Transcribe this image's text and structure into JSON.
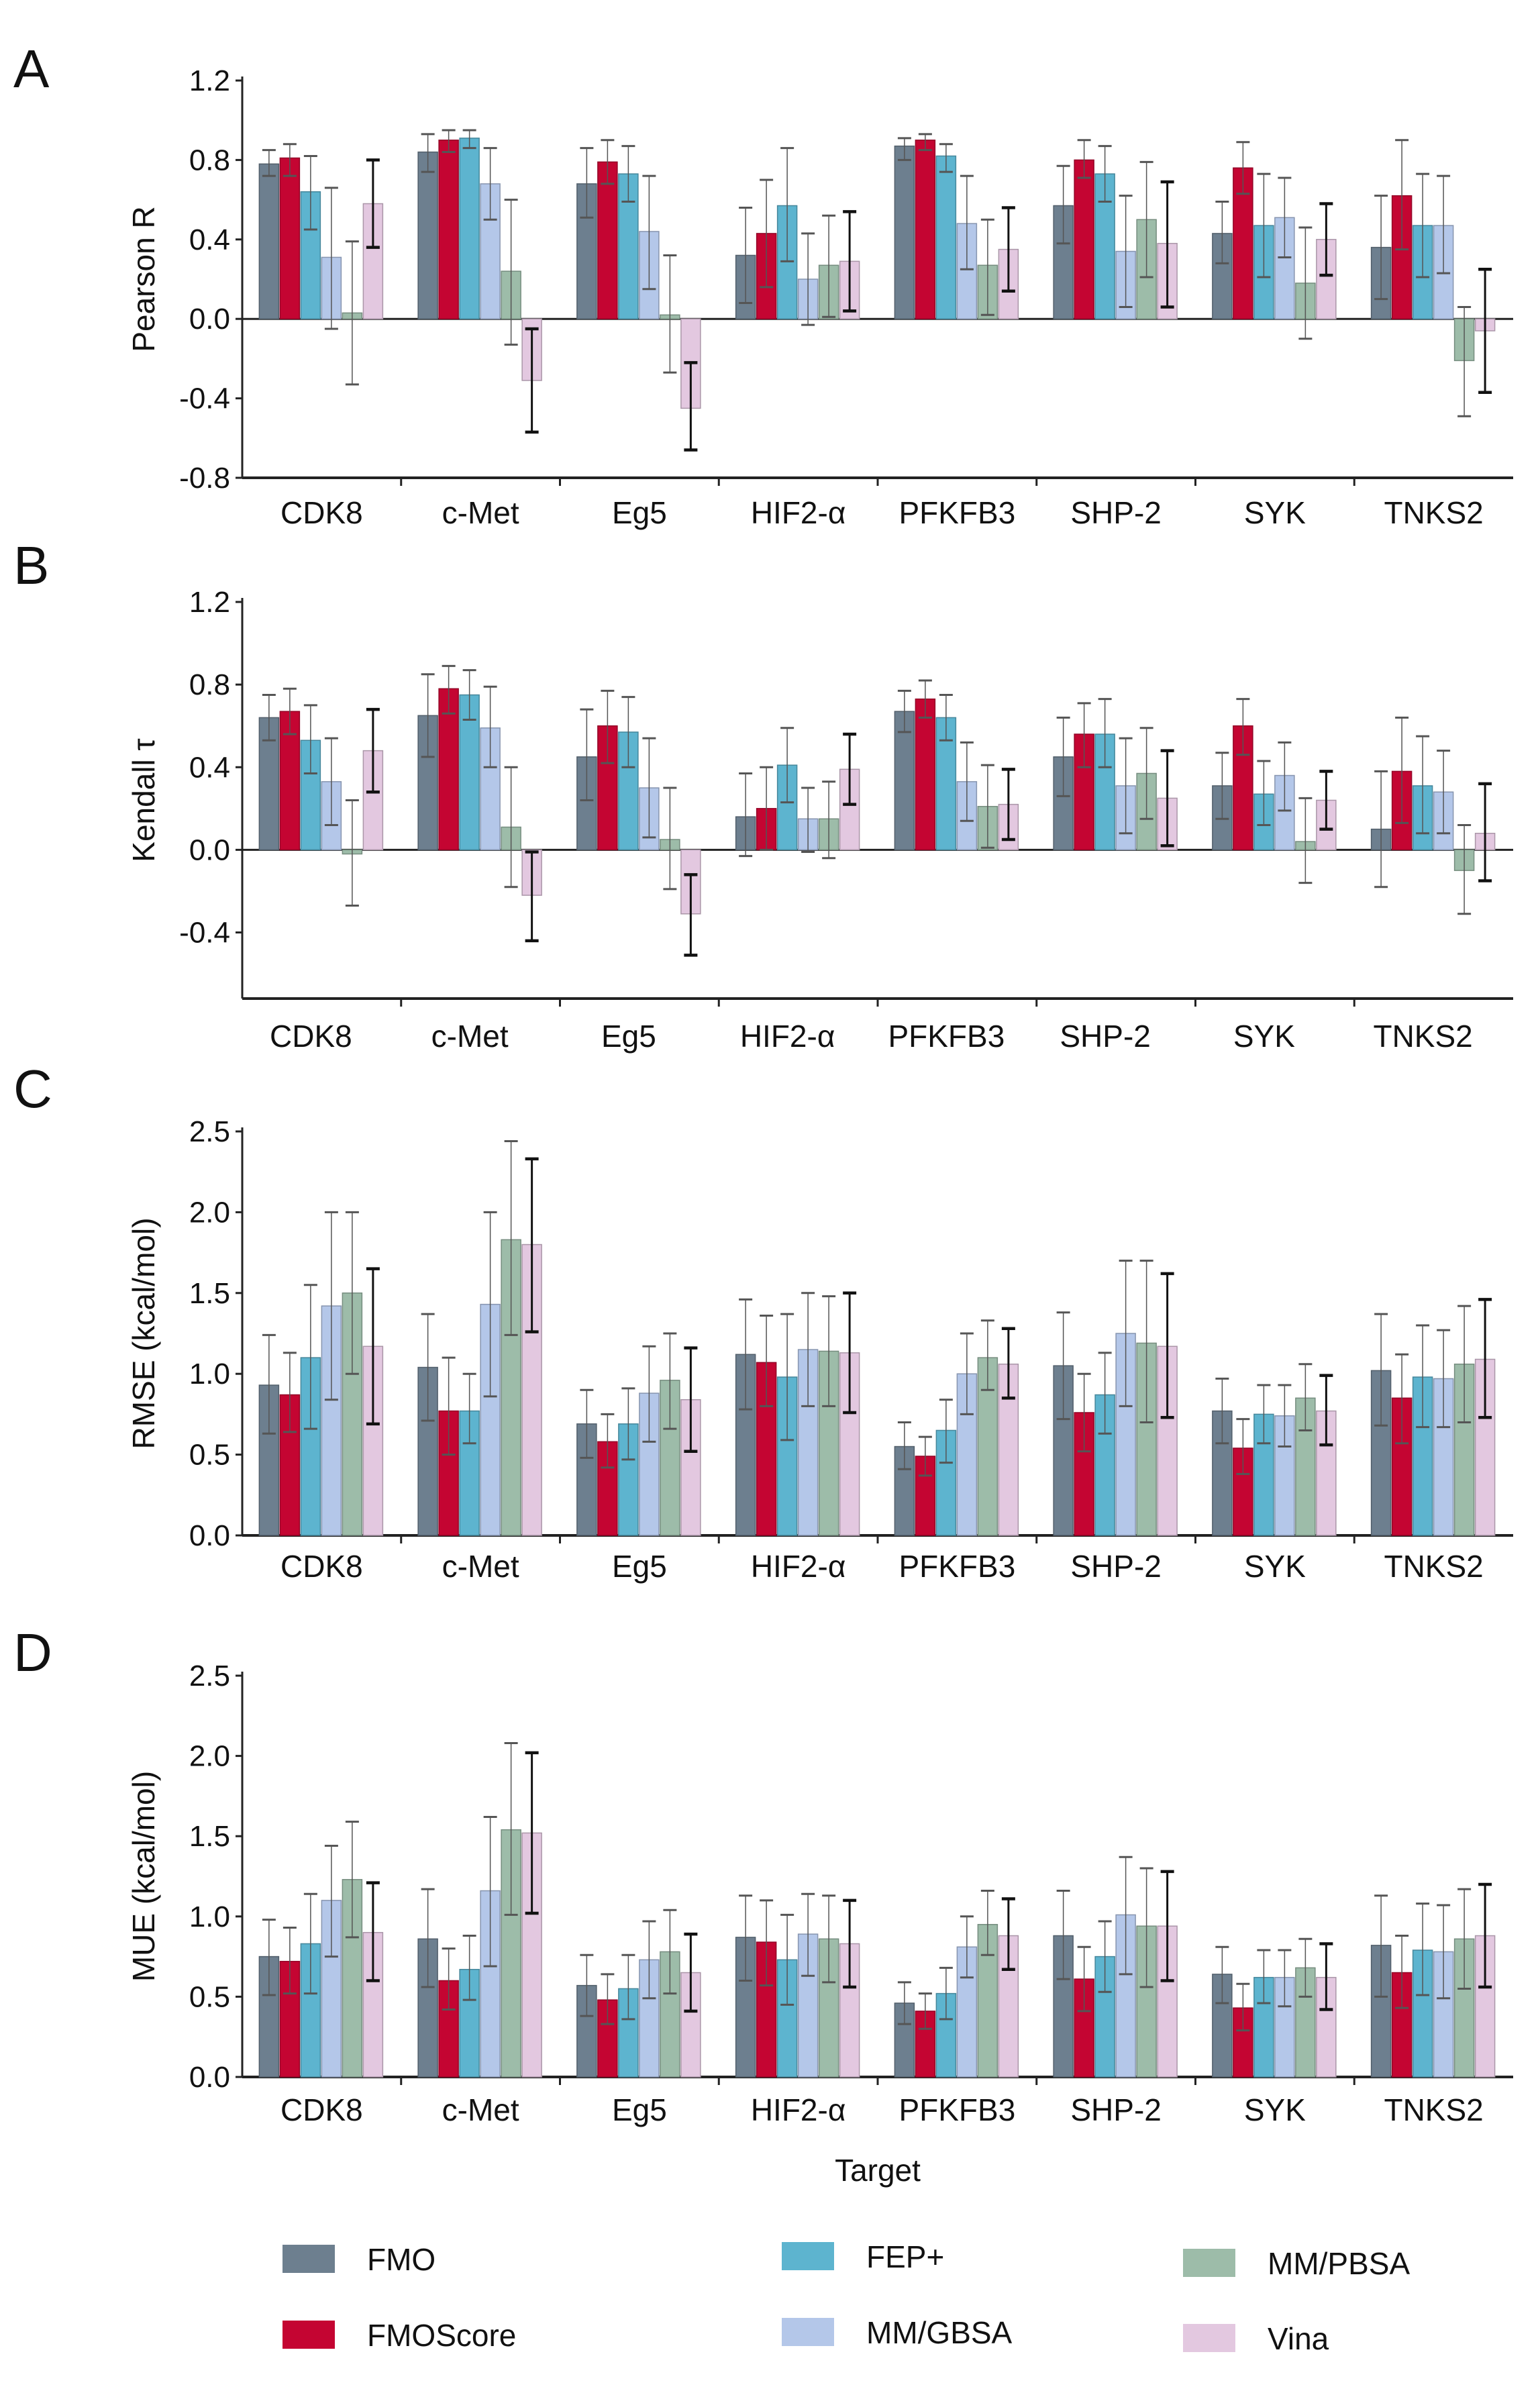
{
  "chart_data": [
    {
      "type": "bar",
      "panel": "A",
      "ylabel": "Pearson R",
      "xlabel": "",
      "ylim": [
        -0.8,
        1.2
      ],
      "yticks": [
        "1.2",
        "0.8",
        "0.4",
        "0.0",
        "-0.4",
        "-0.8"
      ],
      "categories": [
        "CDK8",
        "c-Met",
        "Eg5",
        "HIF2-α",
        "PFKFB3",
        "SHP-2",
        "SYK",
        "TNKS2"
      ],
      "series": [
        {
          "name": "FMO",
          "values": [
            0.78,
            0.84,
            0.68,
            0.32,
            0.87,
            0.57,
            0.43,
            0.36
          ],
          "low": [
            0.72,
            0.74,
            0.51,
            0.08,
            0.8,
            0.38,
            0.28,
            0.1
          ],
          "high": [
            0.85,
            0.93,
            0.86,
            0.56,
            0.91,
            0.77,
            0.59,
            0.62
          ]
        },
        {
          "name": "FMOScore",
          "values": [
            0.81,
            0.9,
            0.79,
            0.43,
            0.9,
            0.8,
            0.76,
            0.62
          ],
          "low": [
            0.72,
            0.84,
            0.68,
            0.16,
            0.85,
            0.71,
            0.63,
            0.35
          ],
          "high": [
            0.88,
            0.95,
            0.9,
            0.7,
            0.93,
            0.9,
            0.89,
            0.9
          ]
        },
        {
          "name": "FEP+",
          "values": [
            0.64,
            0.91,
            0.73,
            0.57,
            0.82,
            0.73,
            0.47,
            0.47
          ],
          "low": [
            0.45,
            0.86,
            0.59,
            0.29,
            0.74,
            0.59,
            0.21,
            0.21
          ],
          "high": [
            0.82,
            0.95,
            0.87,
            0.86,
            0.88,
            0.87,
            0.73,
            0.73
          ]
        },
        {
          "name": "MM/GBSA",
          "values": [
            0.31,
            0.68,
            0.44,
            0.2,
            0.48,
            0.34,
            0.51,
            0.47
          ],
          "low": [
            -0.05,
            0.5,
            0.15,
            -0.03,
            0.25,
            0.06,
            0.31,
            0.23
          ],
          "high": [
            0.66,
            0.86,
            0.72,
            0.43,
            0.72,
            0.62,
            0.71,
            0.72
          ]
        },
        {
          "name": "MM/PBSA",
          "values": [
            0.03,
            0.24,
            0.02,
            0.27,
            0.27,
            0.5,
            0.18,
            -0.21
          ],
          "low": [
            -0.33,
            -0.13,
            -0.27,
            0.01,
            0.02,
            0.21,
            -0.1,
            -0.49
          ],
          "high": [
            0.39,
            0.6,
            0.32,
            0.52,
            0.5,
            0.79,
            0.46,
            0.06
          ]
        },
        {
          "name": "Vina",
          "values": [
            0.58,
            -0.31,
            -0.45,
            0.29,
            0.35,
            0.38,
            0.4,
            -0.06
          ],
          "low": [
            0.36,
            -0.57,
            -0.66,
            0.04,
            0.14,
            0.06,
            0.22,
            -0.37
          ],
          "high": [
            0.8,
            -0.05,
            -0.22,
            0.54,
            0.56,
            0.69,
            0.58,
            0.25
          ]
        }
      ]
    },
    {
      "type": "bar",
      "panel": "B",
      "ylabel": "Kendall τ",
      "xlabel": "",
      "ylim": [
        -0.72,
        1.2
      ],
      "yticks": [
        "1.2",
        "0.8",
        "0.4",
        "0.0",
        "-0.4"
      ],
      "categories": [
        "CDK8",
        "c-Met",
        "Eg5",
        "HIF2-α",
        "PFKFB3",
        "SHP-2",
        "SYK",
        "TNKS2"
      ],
      "series": [
        {
          "name": "FMO",
          "values": [
            0.64,
            0.65,
            0.45,
            0.16,
            0.67,
            0.45,
            0.31,
            0.1
          ],
          "low": [
            0.53,
            0.45,
            0.24,
            -0.03,
            0.57,
            0.26,
            0.15,
            -0.18
          ],
          "high": [
            0.75,
            0.85,
            0.68,
            0.37,
            0.77,
            0.64,
            0.47,
            0.38
          ]
        },
        {
          "name": "FMOScore",
          "values": [
            0.67,
            0.78,
            0.6,
            0.2,
            0.73,
            0.56,
            0.6,
            0.38
          ],
          "low": [
            0.56,
            0.66,
            0.42,
            0.0,
            0.64,
            0.4,
            0.46,
            0.13
          ],
          "high": [
            0.78,
            0.89,
            0.77,
            0.4,
            0.82,
            0.71,
            0.73,
            0.64
          ]
        },
        {
          "name": "FEP+",
          "values": [
            0.53,
            0.75,
            0.57,
            0.41,
            0.64,
            0.56,
            0.27,
            0.31
          ],
          "low": [
            0.37,
            0.63,
            0.4,
            0.23,
            0.53,
            0.4,
            0.12,
            0.08
          ],
          "high": [
            0.7,
            0.87,
            0.74,
            0.59,
            0.75,
            0.73,
            0.43,
            0.55
          ]
        },
        {
          "name": "MM/GBSA",
          "values": [
            0.33,
            0.59,
            0.3,
            0.15,
            0.33,
            0.31,
            0.36,
            0.28
          ],
          "low": [
            0.12,
            0.4,
            0.06,
            -0.01,
            0.14,
            0.08,
            0.19,
            0.08
          ],
          "high": [
            0.54,
            0.79,
            0.54,
            0.3,
            0.52,
            0.54,
            0.52,
            0.48
          ]
        },
        {
          "name": "MM/PBSA",
          "values": [
            -0.02,
            0.11,
            0.05,
            0.15,
            0.21,
            0.37,
            0.04,
            -0.1
          ],
          "low": [
            -0.27,
            -0.18,
            -0.19,
            -0.04,
            0.01,
            0.15,
            -0.16,
            -0.31
          ],
          "high": [
            0.24,
            0.4,
            0.3,
            0.33,
            0.41,
            0.59,
            0.25,
            0.12
          ]
        },
        {
          "name": "Vina",
          "values": [
            0.48,
            -0.22,
            -0.31,
            0.39,
            0.22,
            0.25,
            0.24,
            0.08
          ],
          "low": [
            0.28,
            -0.44,
            -0.51,
            0.22,
            0.05,
            0.02,
            0.1,
            -0.15
          ],
          "high": [
            0.68,
            -0.01,
            -0.12,
            0.56,
            0.39,
            0.48,
            0.38,
            0.32
          ]
        }
      ]
    },
    {
      "type": "bar",
      "panel": "C",
      "ylabel": "RMSE (kcal/mol)",
      "xlabel": "",
      "ylim": [
        0,
        2.5
      ],
      "yticks": [
        "2.5",
        "2.0",
        "1.5",
        "1.0",
        "0.5",
        "0.0"
      ],
      "categories": [
        "CDK8",
        "c-Met",
        "Eg5",
        "HIF2-α",
        "PFKFB3",
        "SHP-2",
        "SYK",
        "TNKS2"
      ],
      "series": [
        {
          "name": "FMO",
          "values": [
            0.93,
            1.04,
            0.69,
            1.12,
            0.55,
            1.05,
            0.77,
            1.02
          ],
          "low": [
            0.63,
            0.71,
            0.48,
            0.78,
            0.41,
            0.72,
            0.57,
            0.68
          ],
          "high": [
            1.24,
            1.37,
            0.9,
            1.46,
            0.7,
            1.38,
            0.97,
            1.37
          ]
        },
        {
          "name": "FMOScore",
          "values": [
            0.87,
            0.77,
            0.58,
            1.07,
            0.49,
            0.76,
            0.54,
            0.85
          ],
          "low": [
            0.64,
            0.5,
            0.42,
            0.8,
            0.37,
            0.52,
            0.38,
            0.57
          ],
          "high": [
            1.13,
            1.1,
            0.75,
            1.36,
            0.61,
            1.0,
            0.72,
            1.12
          ]
        },
        {
          "name": "FEP+",
          "values": [
            1.1,
            0.77,
            0.69,
            0.98,
            0.65,
            0.87,
            0.75,
            0.98
          ],
          "low": [
            0.66,
            0.57,
            0.47,
            0.59,
            0.45,
            0.63,
            0.57,
            0.67
          ],
          "high": [
            1.55,
            1.0,
            0.91,
            1.37,
            0.84,
            1.13,
            0.93,
            1.3
          ]
        },
        {
          "name": "MM/GBSA",
          "values": [
            1.42,
            1.43,
            0.88,
            1.15,
            1.0,
            1.25,
            0.74,
            0.97
          ],
          "low": [
            0.84,
            0.86,
            0.58,
            0.8,
            0.75,
            0.8,
            0.55,
            0.67
          ],
          "high": [
            2.0,
            2.0,
            1.17,
            1.5,
            1.25,
            1.7,
            0.93,
            1.27
          ]
        },
        {
          "name": "MM/PBSA",
          "values": [
            1.5,
            1.83,
            0.96,
            1.14,
            1.1,
            1.19,
            0.85,
            1.06
          ],
          "low": [
            1.0,
            1.24,
            0.66,
            0.8,
            0.9,
            0.7,
            0.65,
            0.7
          ],
          "high": [
            2.0,
            2.44,
            1.25,
            1.48,
            1.33,
            1.7,
            1.06,
            1.42
          ]
        },
        {
          "name": "Vina",
          "values": [
            1.17,
            1.8,
            0.84,
            1.13,
            1.06,
            1.17,
            0.77,
            1.09
          ],
          "low": [
            0.69,
            1.26,
            0.52,
            0.76,
            0.85,
            0.73,
            0.56,
            0.73
          ],
          "high": [
            1.65,
            2.33,
            1.16,
            1.5,
            1.28,
            1.62,
            0.99,
            1.46
          ]
        }
      ]
    },
    {
      "type": "bar",
      "panel": "D",
      "ylabel": "MUE (kcal/mol)",
      "xlabel": "Target",
      "ylim": [
        0,
        2.5
      ],
      "yticks": [
        "2.5",
        "2.0",
        "1.5",
        "1.0",
        "0.5",
        "0.0"
      ],
      "categories": [
        "CDK8",
        "c-Met",
        "Eg5",
        "HIF2-α",
        "PFKFB3",
        "SHP-2",
        "SYK",
        "TNKS2"
      ],
      "series": [
        {
          "name": "FMO",
          "values": [
            0.75,
            0.86,
            0.57,
            0.87,
            0.46,
            0.88,
            0.64,
            0.82
          ],
          "low": [
            0.51,
            0.56,
            0.38,
            0.6,
            0.33,
            0.61,
            0.46,
            0.5
          ],
          "high": [
            0.98,
            1.17,
            0.76,
            1.13,
            0.59,
            1.16,
            0.81,
            1.13
          ]
        },
        {
          "name": "FMOScore",
          "values": [
            0.72,
            0.6,
            0.48,
            0.84,
            0.41,
            0.61,
            0.43,
            0.65
          ],
          "low": [
            0.52,
            0.42,
            0.33,
            0.57,
            0.3,
            0.41,
            0.29,
            0.43
          ],
          "high": [
            0.93,
            0.8,
            0.64,
            1.1,
            0.52,
            0.81,
            0.58,
            0.88
          ]
        },
        {
          "name": "FEP+",
          "values": [
            0.83,
            0.67,
            0.55,
            0.73,
            0.52,
            0.75,
            0.62,
            0.79
          ],
          "low": [
            0.52,
            0.48,
            0.36,
            0.45,
            0.36,
            0.53,
            0.46,
            0.51
          ],
          "high": [
            1.14,
            0.88,
            0.76,
            1.01,
            0.68,
            0.97,
            0.79,
            1.08
          ]
        },
        {
          "name": "MM/GBSA",
          "values": [
            1.1,
            1.16,
            0.73,
            0.89,
            0.81,
            1.01,
            0.62,
            0.78
          ],
          "low": [
            0.75,
            0.69,
            0.49,
            0.63,
            0.62,
            0.64,
            0.44,
            0.49
          ],
          "high": [
            1.44,
            1.62,
            0.97,
            1.14,
            1.0,
            1.37,
            0.79,
            1.07
          ]
        },
        {
          "name": "MM/PBSA",
          "values": [
            1.23,
            1.54,
            0.78,
            0.86,
            0.95,
            0.94,
            0.68,
            0.86
          ],
          "low": [
            0.87,
            1.01,
            0.52,
            0.59,
            0.76,
            0.56,
            0.5,
            0.55
          ],
          "high": [
            1.59,
            2.08,
            1.04,
            1.13,
            1.16,
            1.3,
            0.86,
            1.17
          ]
        },
        {
          "name": "Vina",
          "values": [
            0.9,
            1.52,
            0.65,
            0.83,
            0.88,
            0.94,
            0.62,
            0.88
          ],
          "low": [
            0.6,
            1.02,
            0.41,
            0.56,
            0.67,
            0.6,
            0.42,
            0.56
          ],
          "high": [
            1.21,
            2.02,
            0.89,
            1.1,
            1.11,
            1.28,
            0.83,
            1.2
          ]
        }
      ]
    }
  ],
  "legend": [
    {
      "name": "FMO",
      "color": "#6d7f8f"
    },
    {
      "name": "FMOScore",
      "color": "#c40532"
    },
    {
      "name": "FEP+",
      "color": "#5db4cf"
    },
    {
      "name": "MM/GBSA",
      "color": "#b4c7e9"
    },
    {
      "name": "MM/PBSA",
      "color": "#9dbca9"
    },
    {
      "name": "Vina",
      "color": "#e3c8e0"
    }
  ]
}
